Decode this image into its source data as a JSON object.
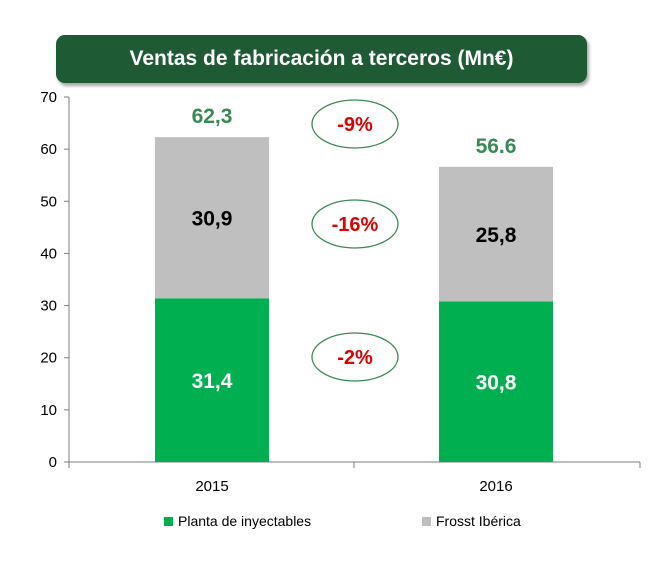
{
  "chart_data": {
    "type": "bar",
    "stacked": true,
    "title": "Ventas de fabricación a terceros (Mn€)",
    "categories": [
      "2015",
      "2016"
    ],
    "series": [
      {
        "name": "Planta de inyectables",
        "values": [
          31.4,
          30.8
        ],
        "labels": [
          "31,4",
          "30,8"
        ],
        "color": "#00b050"
      },
      {
        "name": "Frosst Ibérica",
        "values": [
          30.9,
          25.8
        ],
        "labels": [
          "30,9",
          "25,8"
        ],
        "color": "#bfbfbf"
      }
    ],
    "totals": [
      62.3,
      56.6
    ],
    "total_labels": [
      "62,3",
      "56.6"
    ],
    "total_color": "#3a8a55",
    "ylim": [
      0,
      70
    ],
    "yticks": [
      "0",
      "10",
      "20",
      "30",
      "40",
      "50",
      "60",
      "70"
    ],
    "grid": false,
    "legend_position": "bottom",
    "annotations": [
      {
        "text": "-9%",
        "refers_to": "total"
      },
      {
        "text": "-16%",
        "refers_to": "Frosst Ibérica"
      },
      {
        "text": "-2%",
        "refers_to": "Planta de inyectables"
      }
    ],
    "annotation_color": "#e00000",
    "annotation_border": "#3a8a55"
  }
}
